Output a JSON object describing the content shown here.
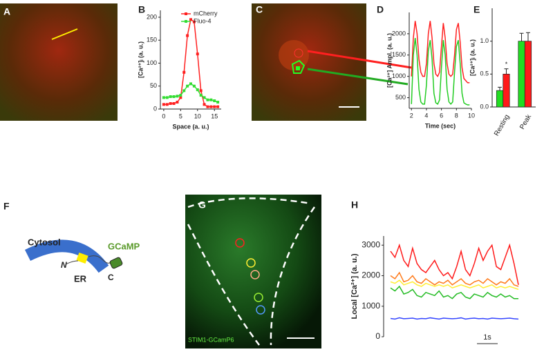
{
  "panels": [
    "A",
    "B",
    "C",
    "D",
    "E",
    "F",
    "G",
    "H"
  ],
  "diagram": {
    "cytosol": "Cytosol",
    "gcamp": "GCaMP",
    "n": "N",
    "c": "C",
    "er": "ER"
  },
  "image_label": "STIM1-GCamP6",
  "chart_data": [
    {
      "type": "line",
      "xlabel": "Space (a. u.)",
      "ylabel": "[Ca²⁺]ᵢ (a. u.)",
      "x": [
        0,
        1,
        2,
        3,
        4,
        5,
        6,
        7,
        8,
        9,
        10,
        11,
        12,
        13,
        14,
        15,
        16
      ],
      "xlim": [
        -1,
        17
      ],
      "xticks": [
        0,
        5,
        10,
        15
      ],
      "ylim": [
        0,
        215
      ],
      "yticks": [
        0,
        50,
        100,
        150,
        200
      ],
      "markers": true,
      "legend": "upper right",
      "series": [
        {
          "name": "mCherry",
          "color": "#ff2020",
          "values": [
            10,
            10,
            12,
            12,
            15,
            25,
            80,
            160,
            195,
            190,
            120,
            40,
            10,
            5,
            5,
            5,
            5
          ]
        },
        {
          "name": "Fluo-4",
          "color": "#33dd33",
          "values": [
            25,
            25,
            27,
            27,
            28,
            30,
            40,
            50,
            55,
            50,
            42,
            30,
            25,
            20,
            20,
            18,
            15
          ]
        }
      ]
    },
    {
      "type": "line",
      "xlabel": "Time (sec)",
      "ylabel": "[Ca²⁺] Ampl. (a. u.)",
      "x": [
        2,
        2.25,
        2.5,
        2.75,
        3,
        3.25,
        3.5,
        3.75,
        4,
        4.25,
        4.5,
        4.75,
        5,
        5.25,
        5.5,
        5.75,
        6,
        6.25,
        6.5,
        6.75,
        7,
        7.25,
        7.5,
        7.75,
        8,
        8.25,
        8.5,
        8.75,
        9,
        9.25,
        9.5,
        9.75
      ],
      "xlim": [
        1.7,
        10
      ],
      "xticks": [
        2,
        4,
        6,
        8,
        10
      ],
      "ylim": [
        250,
        2500
      ],
      "yticks": [
        500,
        1000,
        1500,
        2000
      ],
      "series": [
        {
          "color": "#ff2020",
          "values": [
            1000,
            1900,
            2300,
            2000,
            1400,
            1100,
            1000,
            1000,
            1300,
            2000,
            2300,
            1900,
            1300,
            1050,
            1000,
            1100,
            1700,
            2250,
            1900,
            1300,
            1050,
            1000,
            1050,
            1500,
            2100,
            2250,
            1800,
            1200,
            950,
            900,
            850,
            850
          ]
        },
        {
          "color": "#22cc22",
          "values": [
            350,
            1500,
            1900,
            1500,
            700,
            400,
            350,
            350,
            800,
            1600,
            1850,
            1400,
            600,
            380,
            350,
            450,
            1200,
            1850,
            1500,
            700,
            400,
            350,
            400,
            1100,
            1700,
            1850,
            1300,
            600,
            380,
            350,
            330,
            330
          ]
        }
      ]
    },
    {
      "type": "bar",
      "ylabel": "[Ca²⁺]ᵢ (a. u.)",
      "categories": [
        "Resting",
        "Peak"
      ],
      "ylim": [
        0,
        1.5
      ],
      "yticks": [
        {
          "value": 0,
          "label": "0.0"
        },
        {
          "value": 0.5,
          "label": "0.5"
        },
        {
          "value": 1,
          "label": "1.0"
        }
      ],
      "annotation": "*",
      "series": [
        {
          "color": "#22dd22",
          "values": [
            0.25,
            1.0
          ],
          "errors": [
            0.05,
            0.12
          ]
        },
        {
          "color": "#ff1a1a",
          "values": [
            0.5,
            1.0
          ],
          "errors": [
            0.08,
            0.13
          ]
        }
      ]
    },
    {
      "type": "line",
      "ylabel": "Local [Ca²⁺] (a. u.)",
      "scale_label": "1s",
      "ylim": [
        0,
        3300
      ],
      "yticks": [
        0,
        1000,
        2000,
        3000
      ],
      "series": [
        {
          "color": "#ff1a1a",
          "values": [
            2800,
            2600,
            3000,
            2500,
            2300,
            2900,
            2400,
            2200,
            2100,
            2300,
            2500,
            2200,
            2000,
            2100,
            1900,
            2300,
            2800,
            2200,
            2000,
            2400,
            2900,
            2500,
            2800,
            3000,
            2300,
            2200,
            2600,
            3000,
            2400,
            1700
          ]
        },
        {
          "color": "#ff7a1a",
          "values": [
            2000,
            1900,
            2100,
            1800,
            1850,
            2000,
            1800,
            1750,
            1900,
            1800,
            1700,
            1800,
            1750,
            1850,
            1700,
            1800,
            1900,
            1750,
            1700,
            1800,
            1850,
            1750,
            1900,
            1800,
            1700,
            1800,
            1750,
            1900,
            1700,
            1650
          ]
        },
        {
          "color": "#ffee33",
          "values": [
            1800,
            1750,
            1850,
            1700,
            1750,
            1800,
            1700,
            1650,
            1750,
            1700,
            1650,
            1700,
            1650,
            1700,
            1600,
            1650,
            1700,
            1650,
            1600,
            1650,
            1700,
            1600,
            1650,
            1700,
            1600,
            1650,
            1600,
            1650,
            1600,
            1550
          ]
        },
        {
          "color": "#22bb22",
          "values": [
            1600,
            1500,
            1650,
            1400,
            1450,
            1550,
            1350,
            1300,
            1450,
            1400,
            1350,
            1500,
            1300,
            1350,
            1250,
            1400,
            1450,
            1300,
            1250,
            1400,
            1350,
            1300,
            1450,
            1350,
            1300,
            1400,
            1300,
            1350,
            1250,
            1250
          ]
        },
        {
          "color": "#3344ff",
          "values": [
            600,
            580,
            620,
            590,
            600,
            610,
            580,
            600,
            590,
            620,
            600,
            580,
            610,
            600,
            590,
            600,
            620,
            580,
            600,
            610,
            590,
            600,
            580,
            610,
            600,
            590,
            600,
            610,
            590,
            580
          ]
        }
      ]
    }
  ]
}
